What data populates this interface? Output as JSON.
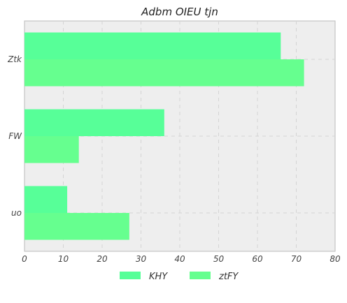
{
  "chart_data": {
    "type": "bar",
    "orientation": "horizontal",
    "title": "Adbm OIEU tjn",
    "xlabel": "",
    "ylabel": "",
    "categories": [
      "Ztk",
      "FW",
      "uo"
    ],
    "series": [
      {
        "name": "KHY",
        "values": [
          66,
          36,
          11
        ],
        "color": "#57ff98"
      },
      {
        "name": "ztFY",
        "values": [
          72,
          14,
          27
        ],
        "color": "#66ff8f"
      }
    ],
    "xlim": [
      0,
      80
    ],
    "xticks": [
      "0",
      "10",
      "20",
      "30",
      "40",
      "50",
      "60",
      "70",
      "80"
    ],
    "grid": true,
    "legend_position": "bottom-center",
    "background_color": "#eeeeee"
  }
}
